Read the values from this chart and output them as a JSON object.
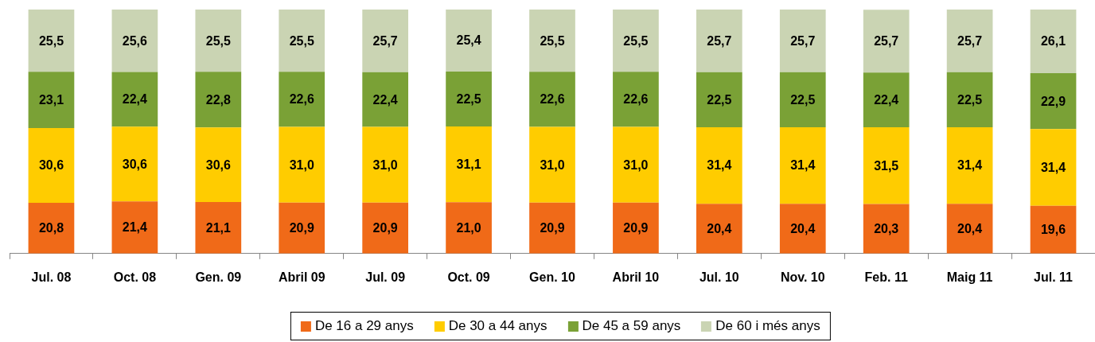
{
  "chart_data": {
    "type": "bar",
    "stacked": true,
    "legend": "bottom",
    "categories": [
      "Jul. 08",
      "Oct. 08",
      "Gen. 09",
      "Abril 09",
      "Jul. 09",
      "Oct. 09",
      "Gen. 10",
      "Abril 10",
      "Jul. 10",
      "Nov. 10",
      "Feb. 11",
      "Maig 11",
      "Jul. 11"
    ],
    "series": [
      {
        "name": "De 16 a 29 anys",
        "color": "#f06a18",
        "values": [
          20.8,
          21.4,
          21.1,
          20.9,
          20.9,
          21.0,
          20.9,
          20.9,
          20.4,
          20.4,
          20.3,
          20.4,
          19.6
        ],
        "value_labels": [
          "20,8",
          "21,4",
          "21,1",
          "20,9",
          "20,9",
          "21,0",
          "20,9",
          "20,9",
          "20,4",
          "20,4",
          "20,3",
          "20,4",
          "19,6"
        ]
      },
      {
        "name": "De 30 a 44 anys",
        "color": "#ffcc00",
        "values": [
          30.6,
          30.6,
          30.6,
          31.0,
          31.0,
          31.1,
          31.0,
          31.0,
          31.4,
          31.4,
          31.5,
          31.4,
          31.4
        ],
        "value_labels": [
          "30,6",
          "30,6",
          "30,6",
          "31,0",
          "31,0",
          "31,1",
          "31,0",
          "31,0",
          "31,4",
          "31,4",
          "31,5",
          "31,4",
          "31,4"
        ]
      },
      {
        "name": "De 45 a 59 anys",
        "color": "#7aa136",
        "values": [
          23.1,
          22.4,
          22.8,
          22.6,
          22.4,
          22.5,
          22.6,
          22.6,
          22.5,
          22.5,
          22.4,
          22.5,
          22.9
        ],
        "value_labels": [
          "23,1",
          "22,4",
          "22,8",
          "22,6",
          "22,4",
          "22,5",
          "22,6",
          "22,6",
          "22,5",
          "22,5",
          "22,4",
          "22,5",
          "22,9"
        ]
      },
      {
        "name": "De 60 i més anys",
        "color": "#cad4b3",
        "values": [
          25.5,
          25.6,
          25.5,
          25.5,
          25.7,
          25.4,
          25.5,
          25.5,
          25.7,
          25.7,
          25.7,
          25.7,
          26.1
        ],
        "value_labels": [
          "25,5",
          "25,6",
          "25,5",
          "25,5",
          "25,7",
          "25,4",
          "25,5",
          "25,5",
          "25,7",
          "25,7",
          "25,7",
          "25,7",
          "26,1"
        ]
      }
    ]
  }
}
